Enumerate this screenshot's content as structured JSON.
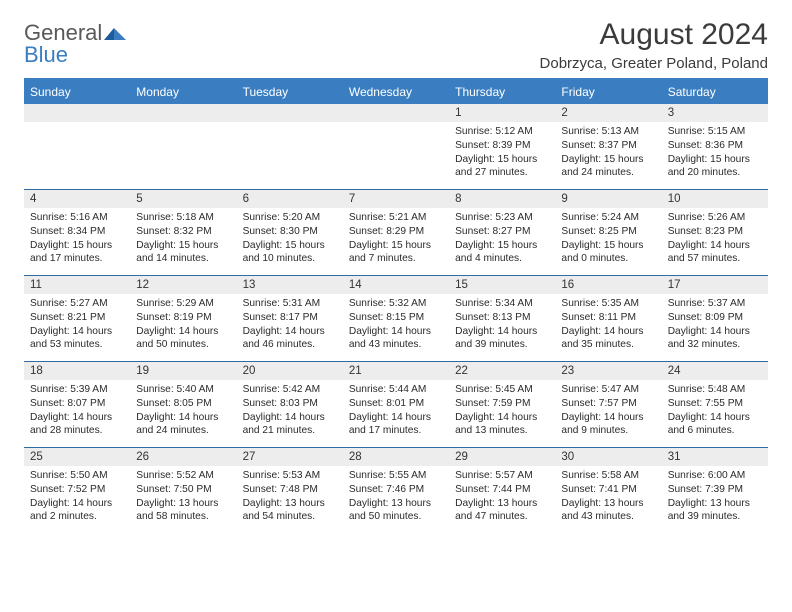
{
  "brand": {
    "text1": "General",
    "text2": "Blue"
  },
  "title": "August 2024",
  "location": "Dobrzyca, Greater Poland, Poland",
  "colors": {
    "accent": "#3a7ec1",
    "header_text": "#ffffff",
    "daynum_bg": "#ededed",
    "border": "#2e6aa3",
    "text": "#2b2b2b",
    "title_text": "#3b3b3b",
    "logo_gray": "#595959"
  },
  "day_headers": [
    "Sunday",
    "Monday",
    "Tuesday",
    "Wednesday",
    "Thursday",
    "Friday",
    "Saturday"
  ],
  "weeks": [
    [
      null,
      null,
      null,
      null,
      {
        "n": "1",
        "sr": "5:12 AM",
        "ss": "8:39 PM",
        "dh": "15",
        "dm": "27"
      },
      {
        "n": "2",
        "sr": "5:13 AM",
        "ss": "8:37 PM",
        "dh": "15",
        "dm": "24"
      },
      {
        "n": "3",
        "sr": "5:15 AM",
        "ss": "8:36 PM",
        "dh": "15",
        "dm": "20"
      }
    ],
    [
      {
        "n": "4",
        "sr": "5:16 AM",
        "ss": "8:34 PM",
        "dh": "15",
        "dm": "17"
      },
      {
        "n": "5",
        "sr": "5:18 AM",
        "ss": "8:32 PM",
        "dh": "15",
        "dm": "14"
      },
      {
        "n": "6",
        "sr": "5:20 AM",
        "ss": "8:30 PM",
        "dh": "15",
        "dm": "10"
      },
      {
        "n": "7",
        "sr": "5:21 AM",
        "ss": "8:29 PM",
        "dh": "15",
        "dm": "7"
      },
      {
        "n": "8",
        "sr": "5:23 AM",
        "ss": "8:27 PM",
        "dh": "15",
        "dm": "4"
      },
      {
        "n": "9",
        "sr": "5:24 AM",
        "ss": "8:25 PM",
        "dh": "15",
        "dm": "0"
      },
      {
        "n": "10",
        "sr": "5:26 AM",
        "ss": "8:23 PM",
        "dh": "14",
        "dm": "57"
      }
    ],
    [
      {
        "n": "11",
        "sr": "5:27 AM",
        "ss": "8:21 PM",
        "dh": "14",
        "dm": "53"
      },
      {
        "n": "12",
        "sr": "5:29 AM",
        "ss": "8:19 PM",
        "dh": "14",
        "dm": "50"
      },
      {
        "n": "13",
        "sr": "5:31 AM",
        "ss": "8:17 PM",
        "dh": "14",
        "dm": "46"
      },
      {
        "n": "14",
        "sr": "5:32 AM",
        "ss": "8:15 PM",
        "dh": "14",
        "dm": "43"
      },
      {
        "n": "15",
        "sr": "5:34 AM",
        "ss": "8:13 PM",
        "dh": "14",
        "dm": "39"
      },
      {
        "n": "16",
        "sr": "5:35 AM",
        "ss": "8:11 PM",
        "dh": "14",
        "dm": "35"
      },
      {
        "n": "17",
        "sr": "5:37 AM",
        "ss": "8:09 PM",
        "dh": "14",
        "dm": "32"
      }
    ],
    [
      {
        "n": "18",
        "sr": "5:39 AM",
        "ss": "8:07 PM",
        "dh": "14",
        "dm": "28"
      },
      {
        "n": "19",
        "sr": "5:40 AM",
        "ss": "8:05 PM",
        "dh": "14",
        "dm": "24"
      },
      {
        "n": "20",
        "sr": "5:42 AM",
        "ss": "8:03 PM",
        "dh": "14",
        "dm": "21"
      },
      {
        "n": "21",
        "sr": "5:44 AM",
        "ss": "8:01 PM",
        "dh": "14",
        "dm": "17"
      },
      {
        "n": "22",
        "sr": "5:45 AM",
        "ss": "7:59 PM",
        "dh": "14",
        "dm": "13"
      },
      {
        "n": "23",
        "sr": "5:47 AM",
        "ss": "7:57 PM",
        "dh": "14",
        "dm": "9"
      },
      {
        "n": "24",
        "sr": "5:48 AM",
        "ss": "7:55 PM",
        "dh": "14",
        "dm": "6"
      }
    ],
    [
      {
        "n": "25",
        "sr": "5:50 AM",
        "ss": "7:52 PM",
        "dh": "14",
        "dm": "2"
      },
      {
        "n": "26",
        "sr": "5:52 AM",
        "ss": "7:50 PM",
        "dh": "13",
        "dm": "58"
      },
      {
        "n": "27",
        "sr": "5:53 AM",
        "ss": "7:48 PM",
        "dh": "13",
        "dm": "54"
      },
      {
        "n": "28",
        "sr": "5:55 AM",
        "ss": "7:46 PM",
        "dh": "13",
        "dm": "50"
      },
      {
        "n": "29",
        "sr": "5:57 AM",
        "ss": "7:44 PM",
        "dh": "13",
        "dm": "47"
      },
      {
        "n": "30",
        "sr": "5:58 AM",
        "ss": "7:41 PM",
        "dh": "13",
        "dm": "43"
      },
      {
        "n": "31",
        "sr": "6:00 AM",
        "ss": "7:39 PM",
        "dh": "13",
        "dm": "39"
      }
    ]
  ],
  "labels": {
    "sunrise": "Sunrise:",
    "sunset": "Sunset:",
    "daylight": "Daylight:",
    "hours": "hours",
    "and": "and",
    "minutes": "minutes."
  }
}
